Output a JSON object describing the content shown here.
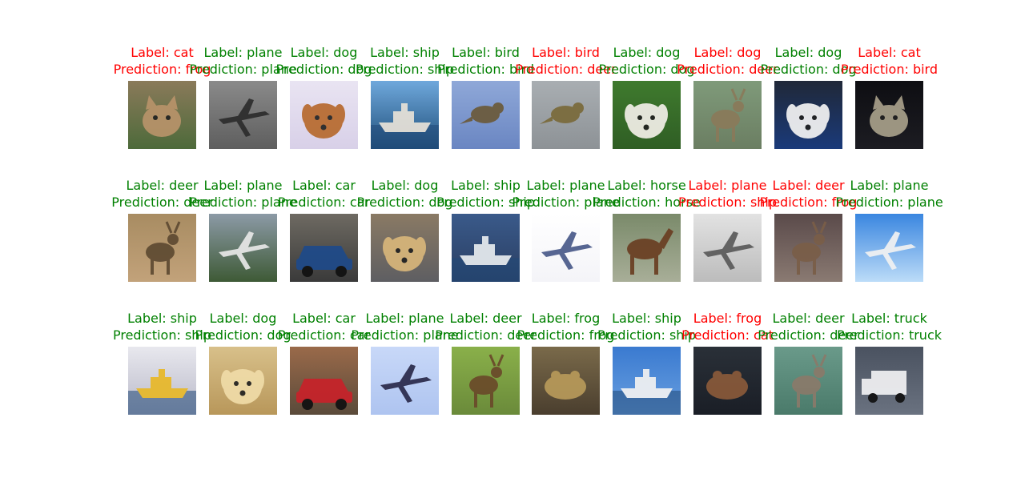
{
  "colors": {
    "correct": "#008000",
    "wrong": "#ff0000"
  },
  "samples": [
    {
      "label": "Label: cat",
      "prediction": "Prediction: frog",
      "correct": false,
      "subject": "cat",
      "bg": [
        "#8a7a5a",
        "#4d6a3a"
      ],
      "fg": "#b8936a"
    },
    {
      "label": "Label: plane",
      "prediction": "Prediction: plane",
      "correct": true,
      "subject": "plane",
      "bg": [
        "#8a8a8a",
        "#5e5e5e"
      ],
      "fg": "#2c2c2c"
    },
    {
      "label": "Label: dog",
      "prediction": "Prediction: dog",
      "correct": true,
      "subject": "dog",
      "bg": [
        "#e9e4f2",
        "#d8d0e8"
      ],
      "fg": "#b76a2e"
    },
    {
      "label": "Label: ship",
      "prediction": "Prediction: ship",
      "correct": true,
      "subject": "ship",
      "bg": [
        "#6fa8dc",
        "#1f4f7a"
      ],
      "fg": "#e8e2d8"
    },
    {
      "label": "Label: bird",
      "prediction": "Prediction: bird",
      "correct": true,
      "subject": "bird",
      "bg": [
        "#8fa8d8",
        "#6a86c2"
      ],
      "fg": "#6b5a3a"
    },
    {
      "label": "Label: bird",
      "prediction": "Prediction: deer",
      "correct": false,
      "subject": "bird",
      "bg": [
        "#a9aeb2",
        "#8d9296"
      ],
      "fg": "#7a6a3a"
    },
    {
      "label": "Label: dog",
      "prediction": "Prediction: dog",
      "correct": true,
      "subject": "dog",
      "bg": [
        "#3f7a2e",
        "#2f5e24"
      ],
      "fg": "#f2efe8"
    },
    {
      "label": "Label: dog",
      "prediction": "Prediction: deer",
      "correct": false,
      "subject": "deer",
      "bg": [
        "#7f9a7a",
        "#6b7e62"
      ],
      "fg": "#8a7a5a"
    },
    {
      "label": "Label: dog",
      "prediction": "Prediction: dog",
      "correct": true,
      "subject": "dog",
      "bg": [
        "#202838",
        "#1a3a7a"
      ],
      "fg": "#f4f4f4"
    },
    {
      "label": "Label: cat",
      "prediction": "Prediction: bird",
      "correct": false,
      "subject": "cat",
      "bg": [
        "#0e0e12",
        "#1c1c22"
      ],
      "fg": "#a8a08a"
    },
    {
      "label": "Label: deer",
      "prediction": "Prediction: deer",
      "correct": true,
      "subject": "deer",
      "bg": [
        "#a88c62",
        "#c2a27a"
      ],
      "fg": "#5e4a32"
    },
    {
      "label": "Label: plane",
      "prediction": "Prediction: plane",
      "correct": true,
      "subject": "plane",
      "bg": [
        "#8c9aa6",
        "#3e5a36"
      ],
      "fg": "#e8e8e8"
    },
    {
      "label": "Label: car",
      "prediction": "Prediction: car",
      "correct": true,
      "subject": "car",
      "bg": [
        "#6e6a62",
        "#3a3a3a"
      ],
      "fg": "#1e4a8a"
    },
    {
      "label": "Label: dog",
      "prediction": "Prediction: dog",
      "correct": true,
      "subject": "dog",
      "bg": [
        "#8a7a64",
        "#5e5e62"
      ],
      "fg": "#d8b67a"
    },
    {
      "label": "Label: ship",
      "prediction": "Prediction: ship",
      "correct": true,
      "subject": "ship",
      "bg": [
        "#3a5a8a",
        "#2a3e62"
      ],
      "fg": "#e8ecef"
    },
    {
      "label": "Label: plane",
      "prediction": "Prediction: plane",
      "correct": true,
      "subject": "plane",
      "bg": [
        "#ffffff",
        "#f4f4f8"
      ],
      "fg": "#4a5a8a"
    },
    {
      "label": "Label: horse",
      "prediction": "Prediction: horse",
      "correct": true,
      "subject": "horse",
      "bg": [
        "#7a8a6a",
        "#a8ae98"
      ],
      "fg": "#6a3e22"
    },
    {
      "label": "Label: plane",
      "prediction": "Prediction: ship",
      "correct": false,
      "subject": "plane",
      "bg": [
        "#e2e2e2",
        "#bcbcbc"
      ],
      "fg": "#5a5a5a"
    },
    {
      "label": "Label: deer",
      "prediction": "Prediction: frog",
      "correct": false,
      "subject": "deer",
      "bg": [
        "#5a4a4a",
        "#8a7a72"
      ],
      "fg": "#7a5e48"
    },
    {
      "label": "Label: plane",
      "prediction": "Prediction: plane",
      "correct": true,
      "subject": "plane",
      "bg": [
        "#3a86e0",
        "#bcdcf8"
      ],
      "fg": "#f2f2f2"
    },
    {
      "label": "Label: ship",
      "prediction": "Prediction: ship",
      "correct": true,
      "subject": "ship",
      "bg": [
        "#e8e8ee",
        "#b8b8c8"
      ],
      "fg": "#e8b828"
    },
    {
      "label": "Label: dog",
      "prediction": "Prediction: dog",
      "correct": true,
      "subject": "dog",
      "bg": [
        "#d8c08a",
        "#b8975a"
      ],
      "fg": "#f0dca8"
    },
    {
      "label": "Label: car",
      "prediction": "Prediction: car",
      "correct": true,
      "subject": "car",
      "bg": [
        "#9a6a4a",
        "#5a4a3a"
      ],
      "fg": "#c8222a"
    },
    {
      "label": "Label: plane",
      "prediction": "Prediction: plane",
      "correct": true,
      "subject": "plane",
      "bg": [
        "#c8d8f8",
        "#aec4f0"
      ],
      "fg": "#2a2a4a"
    },
    {
      "label": "Label: deer",
      "prediction": "Prediction: deer",
      "correct": true,
      "subject": "deer",
      "bg": [
        "#8ab04a",
        "#6a8a3a"
      ],
      "fg": "#6a4a2a"
    },
    {
      "label": "Label: frog",
      "prediction": "Prediction: frog",
      "correct": true,
      "subject": "frog",
      "bg": [
        "#7a6a4a",
        "#4a3e2e"
      ],
      "fg": "#b89a5a"
    },
    {
      "label": "Label: ship",
      "prediction": "Prediction: ship",
      "correct": true,
      "subject": "ship",
      "bg": [
        "#3a7ad0",
        "#6aa0e0"
      ],
      "fg": "#f2f2f2"
    },
    {
      "label": "Label: frog",
      "prediction": "Prediction: cat",
      "correct": false,
      "subject": "frog",
      "bg": [
        "#2a3038",
        "#1a1e26"
      ],
      "fg": "#8a5a3a"
    },
    {
      "label": "Label: deer",
      "prediction": "Prediction: deer",
      "correct": true,
      "subject": "deer",
      "bg": [
        "#6a9a8a",
        "#4a7a6a"
      ],
      "fg": "#8a7a6a"
    },
    {
      "label": "Label: truck",
      "prediction": "Prediction: truck",
      "correct": true,
      "subject": "truck",
      "bg": [
        "#4a5260",
        "#6a7280"
      ],
      "fg": "#f2f2f4"
    }
  ]
}
